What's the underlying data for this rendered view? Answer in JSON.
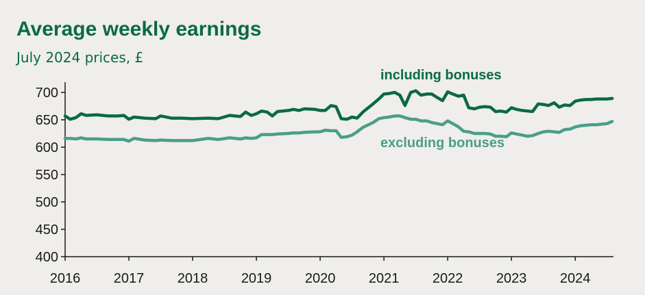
{
  "chart_data": {
    "type": "line",
    "title": "Average weekly earnings",
    "subtitle": "July 2024 prices, £",
    "xlabel": "",
    "ylabel": "",
    "ylim": [
      400,
      700
    ],
    "yticks": [
      400,
      450,
      500,
      550,
      600,
      650,
      700
    ],
    "xlim": [
      2016,
      2024.6
    ],
    "xticks": [
      2016,
      2017,
      2018,
      2019,
      2020,
      2021,
      2022,
      2023,
      2024
    ],
    "grid": false,
    "series": [
      {
        "name": "including bonuses",
        "color": "#0a6a45",
        "x": [
          2016.0,
          2016.08,
          2016.17,
          2016.25,
          2016.33,
          2016.5,
          2016.67,
          2016.83,
          2016.92,
          2017.0,
          2017.08,
          2017.25,
          2017.42,
          2017.5,
          2017.67,
          2017.83,
          2018.0,
          2018.25,
          2018.4,
          2018.58,
          2018.75,
          2018.83,
          2018.92,
          2019.0,
          2019.08,
          2019.17,
          2019.25,
          2019.33,
          2019.5,
          2019.58,
          2019.67,
          2019.75,
          2019.92,
          2020.0,
          2020.08,
          2020.17,
          2020.25,
          2020.33,
          2020.42,
          2020.5,
          2020.58,
          2020.67,
          2020.83,
          2020.92,
          2021.0,
          2021.08,
          2021.17,
          2021.25,
          2021.33,
          2021.42,
          2021.5,
          2021.58,
          2021.67,
          2021.75,
          2021.83,
          2021.92,
          2022.0,
          2022.08,
          2022.17,
          2022.25,
          2022.33,
          2022.42,
          2022.5,
          2022.58,
          2022.67,
          2022.75,
          2022.83,
          2022.92,
          2023.0,
          2023.08,
          2023.17,
          2023.25,
          2023.33,
          2023.42,
          2023.5,
          2023.58,
          2023.67,
          2023.75,
          2023.83,
          2023.92,
          2024.0,
          2024.08,
          2024.17,
          2024.25,
          2024.33,
          2024.42,
          2024.5,
          2024.58
        ],
        "values": [
          657,
          651,
          654,
          661,
          658,
          659,
          657,
          657,
          658,
          651,
          655,
          653,
          652,
          657,
          653,
          653,
          652,
          653,
          652,
          658,
          656,
          664,
          658,
          661,
          666,
          664,
          657,
          665,
          667,
          669,
          667,
          670,
          669,
          667,
          667,
          676,
          674,
          652,
          651,
          655,
          653,
          664,
          679,
          688,
          697,
          698,
          700,
          695,
          676,
          700,
          703,
          695,
          697,
          697,
          691,
          685,
          701,
          697,
          693,
          695,
          672,
          670,
          673,
          674,
          673,
          665,
          666,
          664,
          672,
          669,
          667,
          666,
          665,
          679,
          678,
          676,
          681,
          673,
          677,
          676,
          684,
          686,
          687,
          687,
          688,
          688,
          688,
          689
        ]
      },
      {
        "name": "excluding bonuses",
        "color": "#4a9e88",
        "x": [
          2016.0,
          2016.08,
          2016.17,
          2016.25,
          2016.33,
          2016.5,
          2016.67,
          2016.83,
          2016.92,
          2017.0,
          2017.08,
          2017.25,
          2017.42,
          2017.5,
          2017.67,
          2017.83,
          2018.0,
          2018.25,
          2018.4,
          2018.58,
          2018.75,
          2018.83,
          2018.92,
          2019.0,
          2019.08,
          2019.17,
          2019.25,
          2019.33,
          2019.5,
          2019.58,
          2019.67,
          2019.75,
          2019.92,
          2020.0,
          2020.08,
          2020.17,
          2020.25,
          2020.33,
          2020.42,
          2020.5,
          2020.58,
          2020.67,
          2020.83,
          2020.92,
          2021.0,
          2021.08,
          2021.17,
          2021.25,
          2021.33,
          2021.42,
          2021.5,
          2021.58,
          2021.67,
          2021.75,
          2021.83,
          2021.92,
          2022.0,
          2022.08,
          2022.17,
          2022.25,
          2022.33,
          2022.42,
          2022.5,
          2022.58,
          2022.67,
          2022.75,
          2022.83,
          2022.92,
          2023.0,
          2023.08,
          2023.17,
          2023.25,
          2023.33,
          2023.42,
          2023.5,
          2023.58,
          2023.67,
          2023.75,
          2023.83,
          2023.92,
          2024.0,
          2024.08,
          2024.17,
          2024.25,
          2024.33,
          2024.42,
          2024.5,
          2024.58
        ],
        "values": [
          616,
          616,
          615,
          617,
          615,
          615,
          614,
          614,
          614,
          611,
          616,
          613,
          612,
          613,
          612,
          612,
          612,
          616,
          614,
          617,
          615,
          617,
          616,
          617,
          623,
          623,
          623,
          624,
          625,
          626,
          626,
          627,
          628,
          628,
          631,
          630,
          630,
          618,
          619,
          622,
          628,
          636,
          645,
          652,
          654,
          655,
          657,
          657,
          654,
          651,
          651,
          648,
          648,
          645,
          643,
          641,
          648,
          643,
          637,
          629,
          628,
          625,
          625,
          625,
          624,
          620,
          620,
          619,
          626,
          624,
          622,
          620,
          621,
          625,
          628,
          629,
          628,
          627,
          632,
          633,
          637,
          639,
          640,
          641,
          641,
          642,
          643,
          647
        ]
      }
    ],
    "annotations": [
      {
        "text": "including bonuses",
        "series": 0
      },
      {
        "text": "excluding bonuses",
        "series": 1
      }
    ]
  }
}
